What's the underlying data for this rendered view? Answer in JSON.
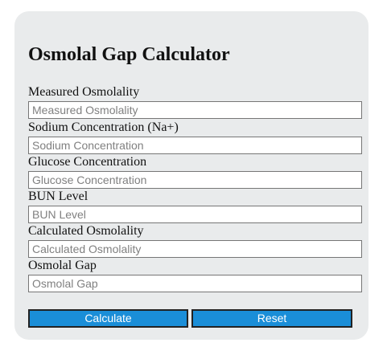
{
  "calculator": {
    "title": "Osmolal Gap Calculator",
    "fields": [
      {
        "label": "Measured Osmolality",
        "placeholder": "Measured Osmolality",
        "value": ""
      },
      {
        "label": "Sodium Concentration (Na+)",
        "placeholder": "Sodium Concentration",
        "value": ""
      },
      {
        "label": "Glucose Concentration",
        "placeholder": "Glucose Concentration",
        "value": ""
      },
      {
        "label": "BUN Level",
        "placeholder": "BUN Level",
        "value": ""
      },
      {
        "label": "Calculated Osmolality",
        "placeholder": "Calculated Osmolality",
        "value": ""
      },
      {
        "label": "Osmolal Gap",
        "placeholder": "Osmolal Gap",
        "value": ""
      }
    ],
    "buttons": {
      "calculate_label": "Calculate",
      "reset_label": "Reset"
    },
    "colors": {
      "card_background": "#e9ebec",
      "button_background": "#1a8ed8",
      "button_text": "#ffffff"
    }
  }
}
